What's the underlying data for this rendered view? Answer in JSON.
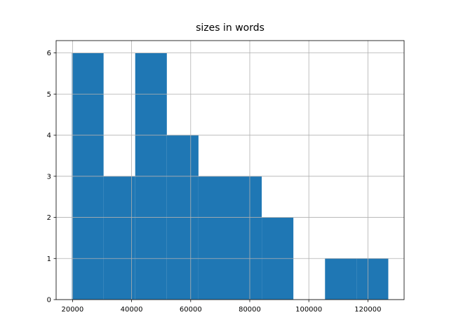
{
  "chart_data": {
    "type": "histogram",
    "title": "sizes in words",
    "bins": [
      19800,
      30510,
      41220,
      51930,
      62640,
      73350,
      84060,
      94770,
      105480,
      116190,
      126900
    ],
    "values": [
      6,
      3,
      6,
      4,
      3,
      3,
      2,
      0,
      1,
      1
    ],
    "color": "#1f77b4",
    "xlim": [
      14445,
      132255
    ],
    "xticks": [
      20000,
      40000,
      60000,
      80000,
      100000,
      120000
    ],
    "ylim": [
      0,
      6.3
    ],
    "yticks": [
      0,
      1,
      2,
      3,
      4,
      5,
      6
    ],
    "grid": true
  }
}
